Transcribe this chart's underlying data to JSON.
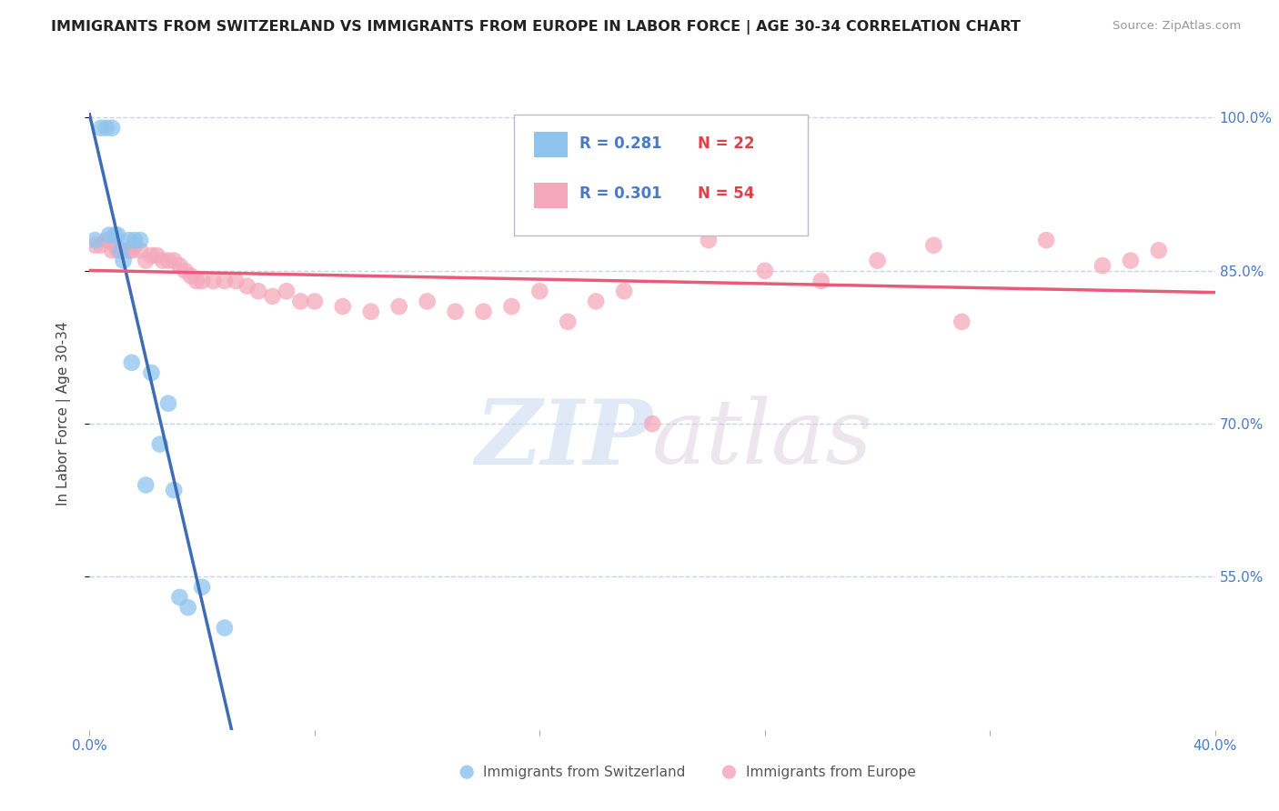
{
  "title": "IMMIGRANTS FROM SWITZERLAND VS IMMIGRANTS FROM EUROPE IN LABOR FORCE | AGE 30-34 CORRELATION CHART",
  "source": "Source: ZipAtlas.com",
  "ylabel": "In Labor Force | Age 30-34",
  "xlim": [
    0.0,
    0.4
  ],
  "ylim": [
    0.4,
    1.02
  ],
  "yticks": [
    0.55,
    0.7,
    0.85,
    1.0
  ],
  "ytick_labels": [
    "55.0%",
    "70.0%",
    "85.0%",
    "100.0%"
  ],
  "xtick_vals": [
    0.0,
    0.08,
    0.16,
    0.24,
    0.32,
    0.4
  ],
  "switzerland_color": "#8ec4ee",
  "europe_color": "#f5a8bc",
  "trend_switzerland_color": "#3d6eb5",
  "trend_europe_color": "#e85c7a",
  "R_switzerland": 0.281,
  "N_switzerland": 22,
  "R_europe": 0.301,
  "N_europe": 54,
  "background_color": "#ffffff",
  "grid_color": "#c8d4e8",
  "swiss_x": [
    0.002,
    0.004,
    0.006,
    0.007,
    0.008,
    0.009,
    0.01,
    0.011,
    0.012,
    0.014,
    0.015,
    0.016,
    0.018,
    0.02,
    0.022,
    0.025,
    0.028,
    0.03,
    0.032,
    0.035,
    0.04,
    0.048
  ],
  "swiss_y": [
    0.88,
    0.99,
    0.99,
    0.885,
    0.99,
    0.885,
    0.885,
    0.87,
    0.86,
    0.88,
    0.76,
    0.88,
    0.88,
    0.64,
    0.75,
    0.68,
    0.72,
    0.635,
    0.53,
    0.52,
    0.54,
    0.5
  ],
  "europe_x": [
    0.002,
    0.004,
    0.006,
    0.007,
    0.008,
    0.009,
    0.01,
    0.012,
    0.014,
    0.015,
    0.016,
    0.018,
    0.02,
    0.022,
    0.024,
    0.026,
    0.028,
    0.03,
    0.032,
    0.034,
    0.036,
    0.038,
    0.04,
    0.044,
    0.048,
    0.052,
    0.056,
    0.06,
    0.065,
    0.07,
    0.075,
    0.08,
    0.09,
    0.1,
    0.11,
    0.12,
    0.13,
    0.14,
    0.15,
    0.16,
    0.17,
    0.18,
    0.19,
    0.2,
    0.22,
    0.24,
    0.26,
    0.28,
    0.3,
    0.31,
    0.34,
    0.36,
    0.37,
    0.38
  ],
  "europe_y": [
    0.875,
    0.875,
    0.88,
    0.88,
    0.87,
    0.875,
    0.87,
    0.87,
    0.87,
    0.87,
    0.875,
    0.87,
    0.86,
    0.865,
    0.865,
    0.86,
    0.86,
    0.86,
    0.855,
    0.85,
    0.845,
    0.84,
    0.84,
    0.84,
    0.84,
    0.84,
    0.835,
    0.83,
    0.825,
    0.83,
    0.82,
    0.82,
    0.815,
    0.81,
    0.815,
    0.82,
    0.81,
    0.81,
    0.815,
    0.83,
    0.8,
    0.82,
    0.83,
    0.7,
    0.88,
    0.85,
    0.84,
    0.86,
    0.875,
    0.8,
    0.88,
    0.855,
    0.86,
    0.87
  ]
}
